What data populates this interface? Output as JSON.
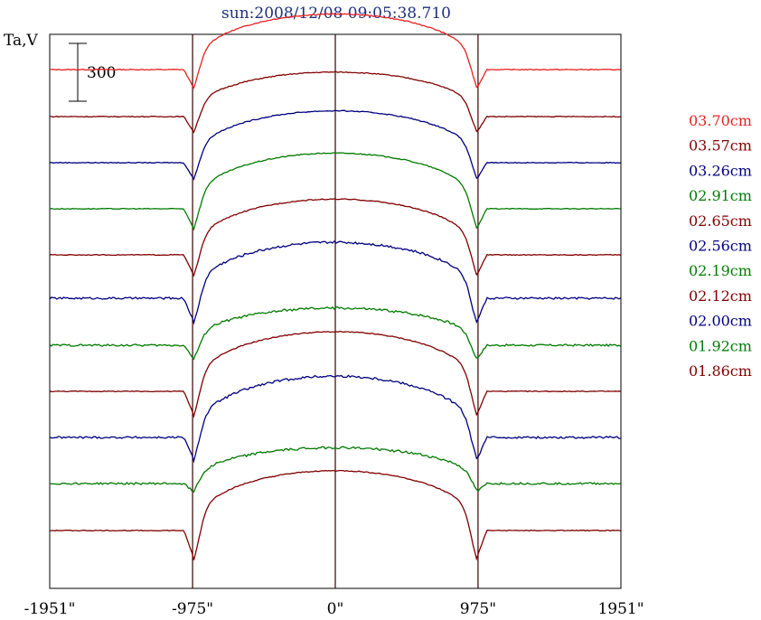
{
  "chart_data": {
    "type": "line",
    "title": "sun:2008/12/08 09:05:38.710",
    "ylabel": "Ta,V",
    "xlabel": "",
    "scale_bar_label": "300",
    "x_tick_labels": [
      "-1951\"",
      "-975\"",
      "0\"",
      "975\"",
      "1951\""
    ],
    "x_ticks": [
      -1951,
      -975,
      0,
      975,
      1951
    ],
    "xlim": [
      -1951,
      1951
    ],
    "vertical_lines_at": [
      -975,
      0,
      975
    ],
    "legend_placement": "right",
    "series": [
      {
        "name": "03.70cm",
        "color": "#e82020",
        "baseline": 77,
        "limb_dip": 30,
        "center_rise": 60
      },
      {
        "name": "03.57cm",
        "color": "#800000",
        "baseline": 129,
        "limb_dip": 25,
        "center_rise": 48
      },
      {
        "name": "03.26cm",
        "color": "#00007f",
        "baseline": 180,
        "limb_dip": 27,
        "center_rise": 56
      },
      {
        "name": "02.91cm",
        "color": "#007a00",
        "baseline": 231,
        "limb_dip": 32,
        "center_rise": 60
      },
      {
        "name": "02.65cm",
        "color": "#800000",
        "baseline": 282,
        "limb_dip": 33,
        "center_rise": 60
      },
      {
        "name": "02.56cm",
        "color": "#00007f",
        "baseline": 330,
        "limb_dip": 38,
        "center_rise": 60
      },
      {
        "name": "02.19cm",
        "color": "#007a00",
        "baseline": 382,
        "limb_dip": 22,
        "center_rise": 40
      },
      {
        "name": "02.12cm",
        "color": "#800000",
        "baseline": 433,
        "limb_dip": 38,
        "center_rise": 64
      },
      {
        "name": "02.00cm",
        "color": "#00007f",
        "baseline": 484,
        "limb_dip": 36,
        "center_rise": 66
      },
      {
        "name": "01.92cm",
        "color": "#007a00",
        "baseline": 535,
        "limb_dip": 14,
        "center_rise": 39
      },
      {
        "name": "01.86cm",
        "color": "#800000",
        "baseline": 587,
        "limb_dip": 44,
        "center_rise": 64
      }
    ],
    "grid": false
  }
}
